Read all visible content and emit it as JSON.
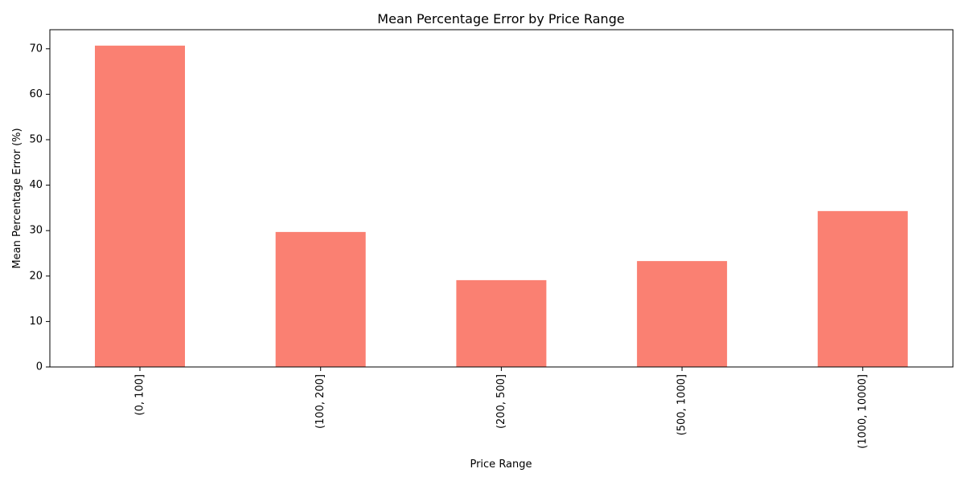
{
  "chart_data": {
    "type": "bar",
    "title": "Mean Percentage Error by Price Range",
    "xlabel": "Price Range",
    "ylabel": "Mean Percentage Error (%)",
    "categories": [
      "(0, 100]",
      "(100, 200]",
      "(200, 500]",
      "(500, 1000]",
      "(1000, 10000]"
    ],
    "values": [
      70.7,
      29.7,
      19.1,
      23.3,
      34.3
    ],
    "ylim": [
      0,
      74.2
    ],
    "yticks": [
      0,
      10,
      20,
      30,
      40,
      50,
      60,
      70
    ],
    "bar_color": "#fa8072",
    "grid": false,
    "legend": "none"
  }
}
